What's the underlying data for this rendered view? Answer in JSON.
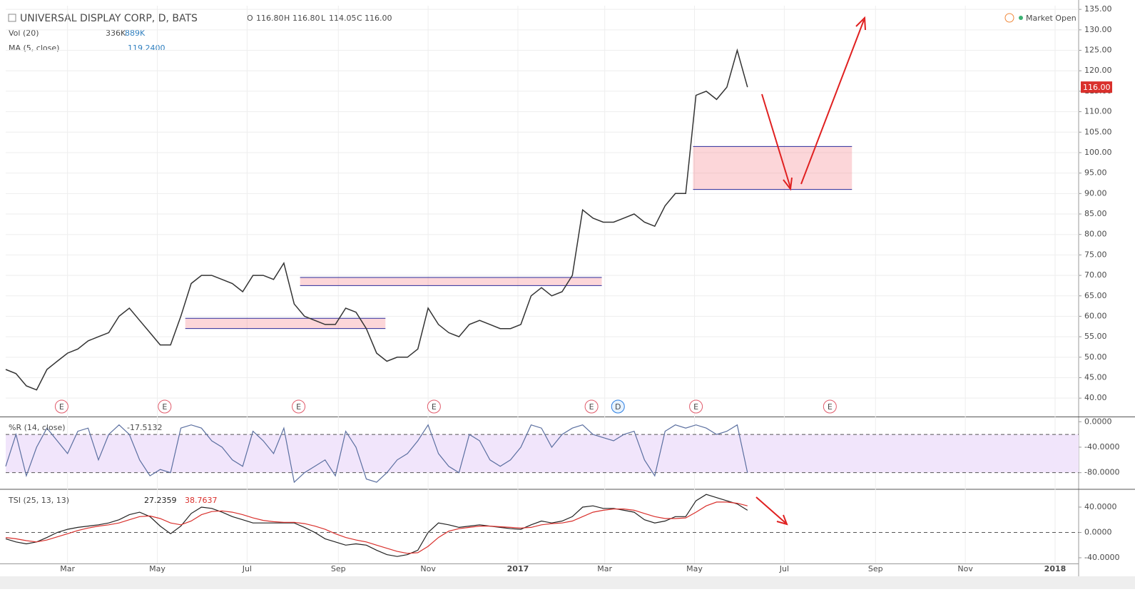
{
  "header": {
    "symbol": "UNIVERSAL DISPLAY CORP, D, BATS",
    "ohlc": [
      {
        "key": "O",
        "value": "116.80"
      },
      {
        "key": "H",
        "value": "116.80"
      },
      {
        "key": "L",
        "value": "114.05"
      },
      {
        "key": "C",
        "value": "116.00"
      }
    ],
    "volume": {
      "name": "Vol (20)",
      "value": "336K",
      "average": "889K"
    },
    "ma": {
      "name": "MA (5, close)",
      "value": "119.2400"
    },
    "status": "Market Open"
  },
  "chart_data": [
    {
      "type": "line",
      "color": "#333333",
      "x": [
        0,
        7,
        14,
        21,
        28,
        35,
        42,
        49,
        56,
        63,
        70,
        77,
        84,
        91,
        98,
        105,
        112,
        119,
        126,
        133,
        140,
        147,
        154,
        161,
        168,
        175,
        182,
        189,
        196,
        203,
        210,
        217,
        224,
        231,
        238,
        245,
        252,
        259,
        266,
        273,
        280,
        287,
        294,
        301,
        308,
        315,
        322,
        329,
        336,
        343,
        350,
        357,
        364,
        371,
        378,
        385,
        392,
        399,
        406,
        413,
        420,
        427,
        434,
        441,
        448,
        455,
        462,
        469,
        476,
        483,
        490,
        497,
        504
      ],
      "values": [
        47,
        46,
        43,
        42,
        47,
        49,
        51,
        52,
        54,
        55,
        56,
        60,
        62,
        59,
        56,
        53,
        53,
        60,
        68,
        70,
        70,
        69,
        68,
        66,
        70,
        70,
        69,
        73,
        63,
        60,
        59,
        58,
        58,
        62,
        61,
        57,
        51,
        49,
        50,
        50,
        52,
        62,
        58,
        56,
        55,
        58,
        59,
        58,
        57,
        57,
        58,
        65,
        67,
        65,
        66,
        70,
        86,
        84,
        83,
        83,
        84,
        85,
        83,
        82,
        87,
        90,
        90,
        114,
        115,
        113,
        116,
        125,
        116
      ],
      "xlim": [
        0,
        729
      ],
      "xticks": [
        {
          "value": 42,
          "label": "Mar"
        },
        {
          "value": 103,
          "label": "May"
        },
        {
          "value": 164,
          "label": "Jul"
        },
        {
          "value": 226,
          "label": "Sep"
        },
        {
          "value": 287,
          "label": "Nov"
        },
        {
          "value": 348,
          "label": "2017"
        },
        {
          "value": 407,
          "label": "Mar"
        },
        {
          "value": 468,
          "label": "May"
        },
        {
          "value": 529,
          "label": "Jul"
        },
        {
          "value": 591,
          "label": "Sep"
        },
        {
          "value": 652,
          "label": "Nov"
        },
        {
          "value": 713,
          "label": "2018"
        }
      ],
      "ylim": [
        35.5,
        135.9
      ],
      "yticks": [
        {
          "value": 40,
          "label": "40.00"
        },
        {
          "value": 45,
          "label": "45.00"
        },
        {
          "value": 50,
          "label": "50.00"
        },
        {
          "value": 55,
          "label": "55.00"
        },
        {
          "value": 60,
          "label": "60.00"
        },
        {
          "value": 65,
          "label": "65.00"
        },
        {
          "value": 70,
          "label": "70.00"
        },
        {
          "value": 75,
          "label": "75.00"
        },
        {
          "value": 80,
          "label": "80.00"
        },
        {
          "value": 85,
          "label": "85.00"
        },
        {
          "value": 90,
          "label": "90.00"
        },
        {
          "value": 95,
          "label": "95.00"
        },
        {
          "value": 100,
          "label": "100.00"
        },
        {
          "value": 105,
          "label": "105.00"
        },
        {
          "value": 110,
          "label": "110.00"
        },
        {
          "value": 115,
          "label": "115.00"
        },
        {
          "value": 120,
          "label": "120.00"
        },
        {
          "value": 125,
          "label": "125.00"
        },
        {
          "value": 130,
          "label": "130.00"
        },
        {
          "value": 135,
          "label": "135.00"
        }
      ],
      "grid": true,
      "price_tag": {
        "value": 116,
        "label": "116.00"
      },
      "zones": [
        {
          "x": [
            122,
            258
          ],
          "y": [
            57,
            59.5
          ]
        },
        {
          "x": [
            200,
            405
          ],
          "y": [
            67.5,
            69.5
          ]
        },
        {
          "x": [
            467,
            575
          ],
          "y": [
            91,
            101.5
          ]
        }
      ],
      "events": [
        {
          "x": 38,
          "label": "E"
        },
        {
          "x": 108,
          "label": "E"
        },
        {
          "x": 199,
          "label": "E"
        },
        {
          "x": 291,
          "label": "E"
        },
        {
          "x": 398,
          "label": "E"
        },
        {
          "x": 416,
          "label": "D"
        },
        {
          "x": 469,
          "label": "E"
        },
        {
          "x": 560,
          "label": "E"
        }
      ]
    },
    {
      "type": "line",
      "title": "%R (14, close)",
      "readout": "-17.5132",
      "color": "#5b6fa0",
      "values": [
        -70,
        -20,
        -85,
        -40,
        -10,
        -30,
        -50,
        -15,
        -10,
        -60,
        -20,
        -5,
        -20,
        -60,
        -85,
        -75,
        -80,
        -10,
        -5,
        -10,
        -30,
        -40,
        -60,
        -70,
        -15,
        -30,
        -50,
        -10,
        -95,
        -80,
        -70,
        -60,
        -85,
        -15,
        -40,
        -90,
        -95,
        -80,
        -60,
        -50,
        -30,
        -5,
        -50,
        -70,
        -80,
        -20,
        -30,
        -60,
        -70,
        -60,
        -40,
        -5,
        -10,
        -40,
        -20,
        -10,
        -5,
        -20,
        -25,
        -30,
        -20,
        -15,
        -60,
        -85,
        -15,
        -5,
        -10,
        -5,
        -10,
        -20,
        -15,
        -5,
        -80
      ],
      "ylim": [
        -105,
        7
      ],
      "yticks": [
        {
          "value": 0,
          "label": "0.0000"
        },
        {
          "value": -40,
          "label": "-40.0000"
        },
        {
          "value": -80,
          "label": "-80.0000"
        }
      ],
      "levels": [
        -20,
        -80
      ]
    },
    {
      "type": "line",
      "title": "TSI (25, 13, 13)",
      "readouts": [
        "27.2359",
        "38.7637"
      ],
      "series": [
        {
          "color": "#222222",
          "values": [
            -10,
            -15,
            -18,
            -15,
            -8,
            0,
            5,
            8,
            10,
            12,
            15,
            20,
            28,
            32,
            25,
            10,
            -2,
            10,
            30,
            40,
            38,
            32,
            25,
            20,
            15,
            15,
            15,
            15,
            15,
            8,
            0,
            -10,
            -15,
            -20,
            -18,
            -20,
            -28,
            -35,
            -38,
            -35,
            -28,
            0,
            15,
            12,
            8,
            10,
            12,
            10,
            8,
            6,
            5,
            12,
            18,
            15,
            18,
            25,
            40,
            42,
            38,
            38,
            35,
            32,
            20,
            15,
            18,
            25,
            25,
            50,
            60,
            55,
            50,
            45,
            35
          ]
        },
        {
          "color": "#d9302c",
          "values": [
            -8,
            -10,
            -13,
            -15,
            -12,
            -7,
            -2,
            3,
            7,
            10,
            12,
            15,
            20,
            25,
            26,
            22,
            15,
            12,
            18,
            28,
            33,
            34,
            32,
            28,
            23,
            19,
            17,
            16,
            16,
            14,
            10,
            5,
            -2,
            -8,
            -12,
            -15,
            -20,
            -25,
            -30,
            -33,
            -32,
            -22,
            -8,
            2,
            6,
            8,
            10,
            10,
            9,
            8,
            7,
            8,
            12,
            14,
            15,
            18,
            25,
            32,
            35,
            37,
            37,
            35,
            30,
            25,
            22,
            22,
            23,
            32,
            42,
            48,
            48,
            46,
            42
          ]
        }
      ],
      "ylim": [
        -49,
        67
      ],
      "yticks": [
        {
          "value": 40,
          "label": "40.0000"
        },
        {
          "value": 0,
          "label": "0.0000"
        },
        {
          "value": -40,
          "label": "-40.0000"
        }
      ],
      "levels": [
        0
      ]
    }
  ]
}
